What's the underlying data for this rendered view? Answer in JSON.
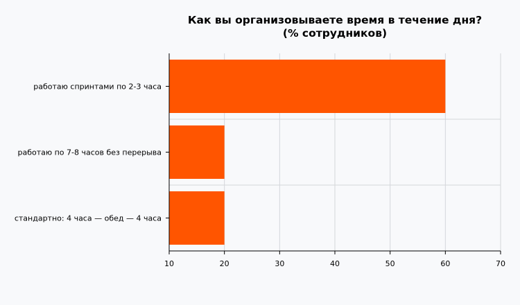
{
  "chart_data": {
    "type": "bar",
    "orientation": "horizontal",
    "title": [
      "Как вы организовываете время в течение дня?",
      "(% сотрудников)"
    ],
    "categories": [
      "работаю спринтами по 2-3 часа",
      "работаю по 7-8 часов без перерыва",
      "стандартно: 4 часа — обед — 4 часа"
    ],
    "values": [
      60,
      20,
      20
    ],
    "xlim": [
      10,
      70
    ],
    "xticks": [
      10,
      20,
      30,
      40,
      50,
      60,
      70
    ],
    "xlabel": "",
    "ylabel": "",
    "grid": true,
    "bar_color": "#ff5500",
    "grid_color": "#d4d6da",
    "axis_color": "#000000"
  }
}
